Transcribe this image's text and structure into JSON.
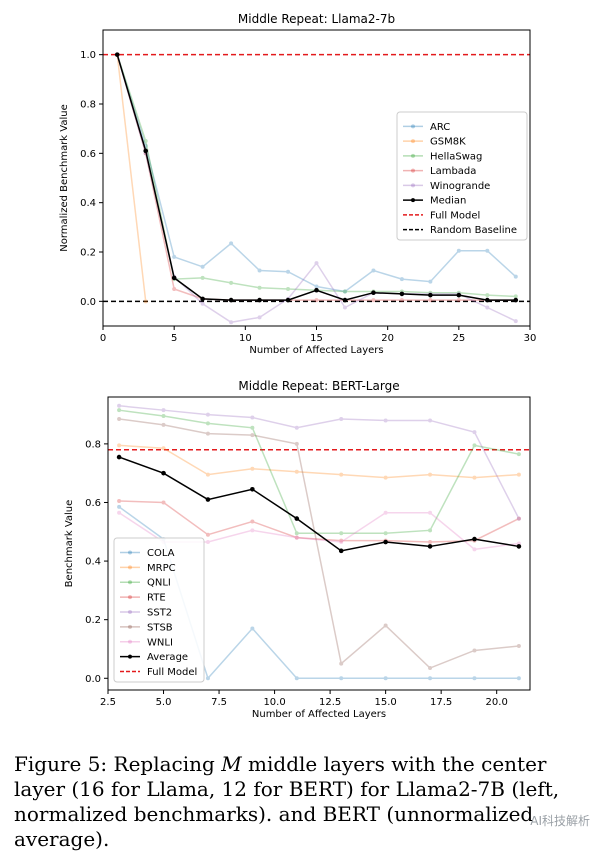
{
  "chart_data": [
    {
      "type": "line",
      "title": "Middle Repeat: Llama2-7b",
      "xlabel": "Number of Affected Layers",
      "ylabel": "Normalized Benchmark Value",
      "xlim": [
        0,
        30
      ],
      "ylim": [
        -0.1,
        1.1
      ],
      "xticks": [
        0,
        5,
        10,
        15,
        20,
        25,
        30
      ],
      "yticks": [
        0.0,
        0.2,
        0.4,
        0.6,
        0.8,
        1.0
      ],
      "legend_position": "center-right",
      "x": [
        1,
        3,
        5,
        7,
        9,
        11,
        13,
        15,
        17,
        19,
        21,
        23,
        25,
        27,
        29
      ],
      "series": [
        {
          "name": "ARC",
          "color": "#1f77b4",
          "values": [
            1.0,
            0.63,
            0.18,
            0.14,
            0.235,
            0.125,
            0.12,
            0.06,
            0.04,
            0.125,
            0.09,
            0.08,
            0.205,
            0.205,
            0.1
          ]
        },
        {
          "name": "GSM8K",
          "color": "#ff7f0e",
          "values": [
            1.0,
            0.0,
            null,
            null,
            null,
            null,
            null,
            null,
            null,
            null,
            null,
            null,
            null,
            null,
            null
          ]
        },
        {
          "name": "HellaSwag",
          "color": "#2ca02c",
          "values": [
            1.0,
            0.65,
            0.09,
            0.095,
            0.075,
            0.055,
            0.05,
            0.045,
            0.04,
            0.04,
            0.04,
            0.035,
            0.035,
            0.025,
            0.02
          ]
        },
        {
          "name": "Lambada",
          "color": "#d62728",
          "values": [
            1.0,
            0.6,
            0.05,
            0.01,
            0.005,
            0.005,
            0.005,
            0.005,
            0.005,
            0.005,
            0.005,
            0.005,
            0.005,
            0.005,
            0.005
          ]
        },
        {
          "name": "Winogrande",
          "color": "#9467bd",
          "values": [
            1.0,
            0.6,
            0.1,
            -0.01,
            -0.085,
            -0.065,
            0.01,
            0.155,
            -0.025,
            0.035,
            0.03,
            0.03,
            0.03,
            -0.025,
            -0.08
          ]
        },
        {
          "name": "Median",
          "color": "#000000",
          "values": [
            1.0,
            0.61,
            0.095,
            0.01,
            0.005,
            0.005,
            0.005,
            0.045,
            0.005,
            0.035,
            0.03,
            0.025,
            0.025,
            0.005,
            0.005
          ]
        }
      ],
      "reference_lines": [
        {
          "name": "Full Model",
          "value": 1.0,
          "color": "#e31a1c"
        },
        {
          "name": "Random Baseline",
          "value": 0.0,
          "color": "#000000"
        }
      ]
    },
    {
      "type": "line",
      "title": "Middle Repeat: BERT-Large",
      "xlabel": "Number of Affected Layers",
      "ylabel": "Benchmark Value",
      "xlim": [
        2.5,
        21.5
      ],
      "ylim": [
        -0.04,
        0.96
      ],
      "xticks": [
        2.5,
        5.0,
        7.5,
        10.0,
        12.5,
        15.0,
        17.5,
        20.0
      ],
      "xtick_labels": [
        "2.5",
        "5.0",
        "7.5",
        "10.0",
        "12.5",
        "15.0",
        "17.5",
        "20.0"
      ],
      "yticks": [
        0.0,
        0.2,
        0.4,
        0.6,
        0.8
      ],
      "legend_position": "lower-left",
      "x": [
        3,
        5,
        7,
        9,
        11,
        13,
        15,
        17,
        19,
        21
      ],
      "series": [
        {
          "name": "COLA",
          "color": "#1f77b4",
          "values": [
            0.585,
            0.475,
            0.0,
            0.17,
            0.0,
            0.0,
            0.0,
            0.0,
            0.0,
            0.0
          ]
        },
        {
          "name": "MRPC",
          "color": "#ff7f0e",
          "values": [
            0.795,
            0.785,
            0.695,
            0.715,
            0.705,
            0.695,
            0.685,
            0.695,
            0.685,
            0.695
          ]
        },
        {
          "name": "QNLI",
          "color": "#2ca02c",
          "values": [
            0.915,
            0.895,
            0.87,
            0.855,
            0.495,
            0.495,
            0.495,
            0.505,
            0.795,
            0.765
          ]
        },
        {
          "name": "RTE",
          "color": "#d62728",
          "values": [
            0.605,
            0.6,
            0.49,
            0.535,
            0.48,
            0.47,
            0.47,
            0.465,
            0.47,
            0.545
          ]
        },
        {
          "name": "SST2",
          "color": "#9467bd",
          "values": [
            0.93,
            0.915,
            0.9,
            0.89,
            0.855,
            0.885,
            0.88,
            0.88,
            0.84,
            0.545
          ]
        },
        {
          "name": "STSB",
          "color": "#8c564b",
          "values": [
            0.885,
            0.865,
            0.835,
            0.83,
            0.8,
            0.05,
            0.18,
            0.035,
            0.095,
            0.11
          ]
        },
        {
          "name": "WNLI",
          "color": "#e377c2",
          "values": [
            0.565,
            0.465,
            0.465,
            0.505,
            0.48,
            0.465,
            0.565,
            0.565,
            0.44,
            0.46
          ]
        },
        {
          "name": "Average",
          "color": "#000000",
          "values": [
            0.755,
            0.7,
            0.61,
            0.645,
            0.545,
            0.435,
            0.465,
            0.45,
            0.475,
            0.45
          ]
        }
      ],
      "reference_lines": [
        {
          "name": "Full Model",
          "value": 0.78,
          "color": "#e31a1c"
        }
      ]
    }
  ],
  "caption": {
    "prefix": "Figure 5: Replacing ",
    "variable": "M",
    "suffix": " middle layers with the center layer (16 for Llama, 12 for BERT) for Llama2-7B (left, normalized benchmarks). and BERT (unnormalized average)."
  },
  "watermark": "AI科技解析"
}
